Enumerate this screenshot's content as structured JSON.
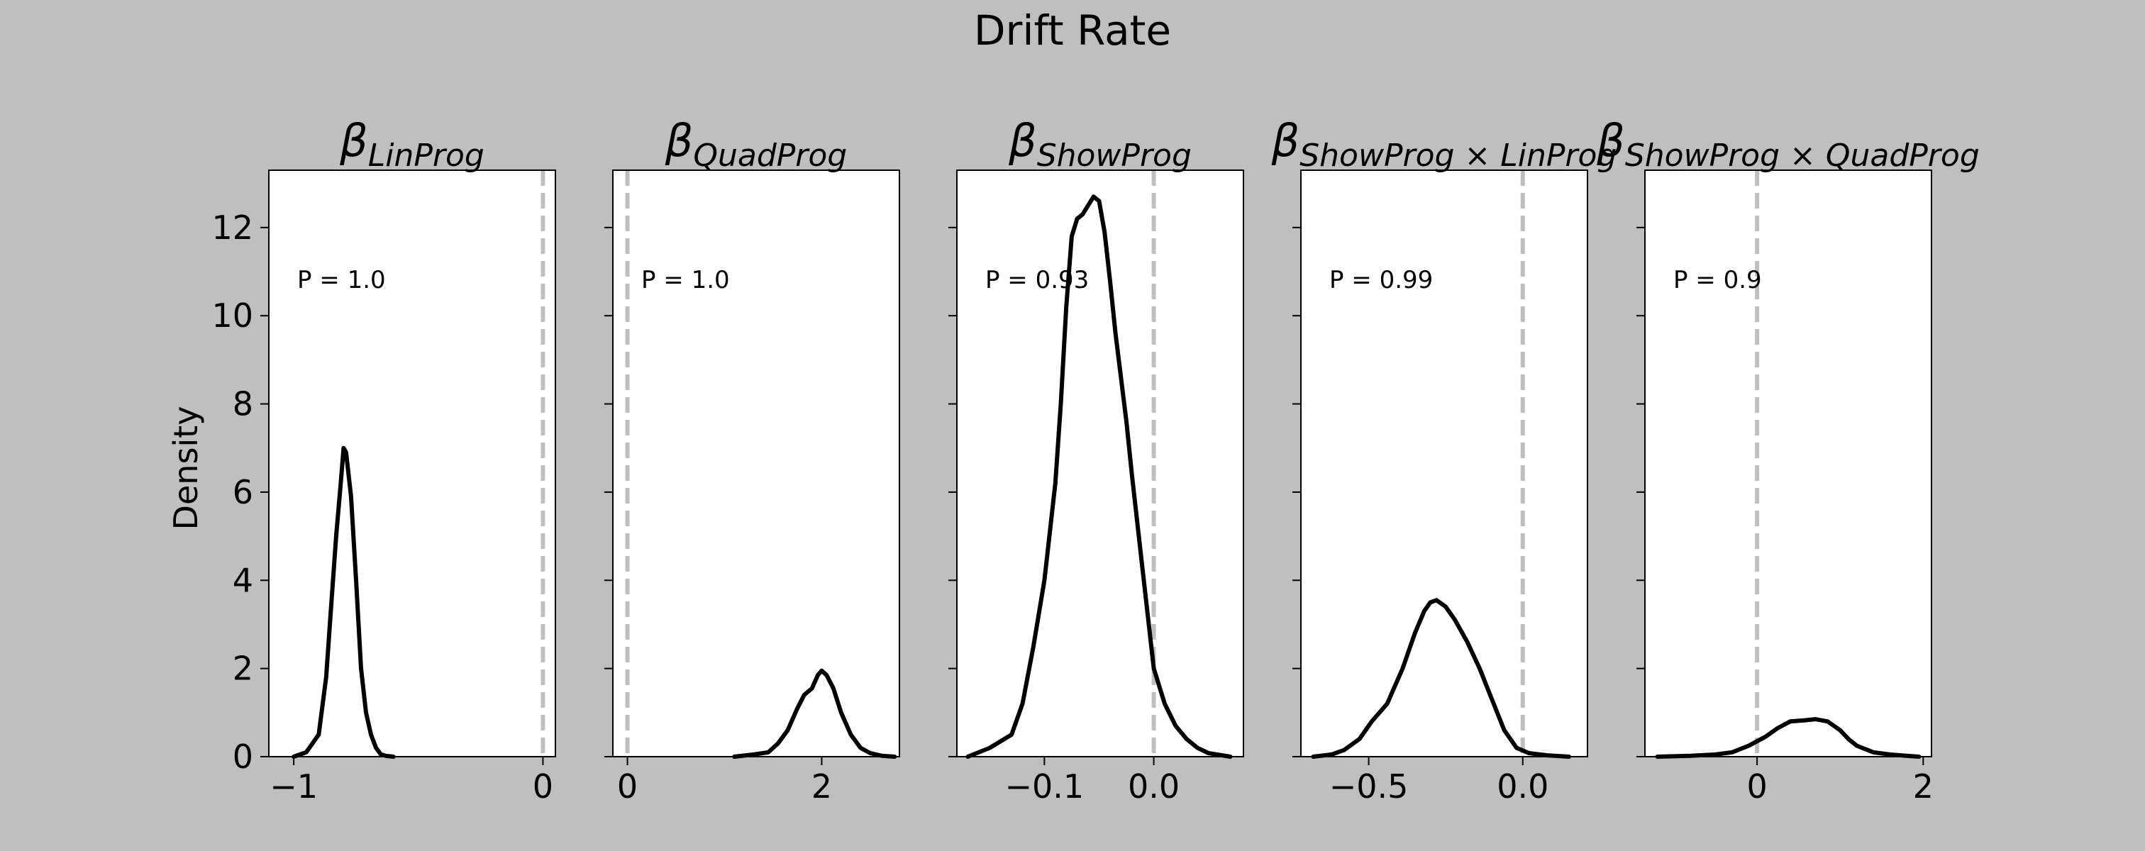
{
  "figure": {
    "title": "Drift Rate",
    "ylabel": "Density",
    "background": "#bfbfbf"
  },
  "colors": {
    "line": "#000000",
    "reference_line": "#bfbfbf",
    "panel": "#ffffff"
  },
  "chart_data": [
    {
      "type": "line",
      "title": {
        "base": "β",
        "sub": "LinProg"
      },
      "annotation": "P = 1.0",
      "xlim": [
        -1.1,
        0.05
      ],
      "ylim": [
        0,
        13.3
      ],
      "xticks": [
        {
          "v": -1,
          "label": "−1"
        },
        {
          "v": 0,
          "label": "0"
        }
      ],
      "yticks": [
        0,
        2,
        4,
        6,
        8,
        10,
        12
      ],
      "reference_x": 0,
      "x": [
        -1.0,
        -0.95,
        -0.9,
        -0.87,
        -0.85,
        -0.83,
        -0.81,
        -0.8,
        -0.79,
        -0.77,
        -0.75,
        -0.73,
        -0.71,
        -0.69,
        -0.67,
        -0.65,
        -0.63,
        -0.6
      ],
      "y": [
        0,
        0.1,
        0.5,
        1.8,
        3.4,
        5.0,
        6.3,
        7.0,
        6.9,
        5.9,
        4.0,
        2.0,
        1.0,
        0.5,
        0.2,
        0.05,
        0.02,
        0
      ]
    },
    {
      "type": "line",
      "title": {
        "base": "β",
        "sub": "QuadProg"
      },
      "annotation": "P = 1.0",
      "xlim": [
        -0.15,
        2.8
      ],
      "ylim": [
        0,
        13.3
      ],
      "xticks": [
        {
          "v": 0,
          "label": "0"
        },
        {
          "v": 2,
          "label": "2"
        }
      ],
      "yticks": [
        0,
        2,
        4,
        6,
        8,
        10,
        12
      ],
      "reference_x": 0,
      "x": [
        1.1,
        1.3,
        1.45,
        1.55,
        1.65,
        1.75,
        1.82,
        1.9,
        1.96,
        2.0,
        2.05,
        2.12,
        2.2,
        2.3,
        2.4,
        2.5,
        2.62,
        2.75
      ],
      "y": [
        0,
        0.05,
        0.1,
        0.3,
        0.6,
        1.1,
        1.4,
        1.55,
        1.85,
        1.95,
        1.85,
        1.55,
        1.0,
        0.5,
        0.2,
        0.08,
        0.02,
        0
      ]
    },
    {
      "type": "line",
      "title": {
        "base": "β",
        "sub": "ShowProg"
      },
      "annotation": "P = 0.93",
      "xlim": [
        -0.18,
        0.082
      ],
      "ylim": [
        0,
        13.3
      ],
      "xticks": [
        {
          "v": -0.1,
          "label": "−0.1"
        },
        {
          "v": 0,
          "label": "0.0"
        }
      ],
      "yticks": [
        0,
        2,
        4,
        6,
        8,
        10,
        12
      ],
      "reference_x": 0,
      "x": [
        -0.17,
        -0.15,
        -0.13,
        -0.12,
        -0.11,
        -0.1,
        -0.09,
        -0.085,
        -0.08,
        -0.075,
        -0.07,
        -0.065,
        -0.06,
        -0.055,
        -0.05,
        -0.045,
        -0.04,
        -0.035,
        -0.03,
        -0.025,
        -0.02,
        -0.01,
        0.0,
        0.01,
        0.02,
        0.03,
        0.04,
        0.05,
        0.07
      ],
      "y": [
        0,
        0.2,
        0.5,
        1.2,
        2.5,
        4.0,
        6.2,
        8.0,
        10.2,
        11.8,
        12.2,
        12.3,
        12.5,
        12.7,
        12.6,
        11.9,
        10.8,
        9.6,
        8.6,
        7.6,
        6.4,
        4.2,
        2.0,
        1.2,
        0.7,
        0.4,
        0.2,
        0.08,
        0
      ]
    },
    {
      "type": "line",
      "title": {
        "base": "β",
        "sub": "ShowProg × LinProg"
      },
      "annotation": "P = 0.99",
      "xlim": [
        -0.72,
        0.21
      ],
      "ylim": [
        0,
        13.3
      ],
      "xticks": [
        {
          "v": -0.5,
          "label": "−0.5"
        },
        {
          "v": 0,
          "label": "0.0"
        }
      ],
      "yticks": [
        0,
        2,
        4,
        6,
        8,
        10,
        12
      ],
      "reference_x": 0,
      "x": [
        -0.68,
        -0.62,
        -0.58,
        -0.53,
        -0.49,
        -0.44,
        -0.39,
        -0.35,
        -0.32,
        -0.3,
        -0.28,
        -0.25,
        -0.22,
        -0.18,
        -0.14,
        -0.1,
        -0.06,
        -0.02,
        0.02,
        0.08,
        0.15
      ],
      "y": [
        0,
        0.05,
        0.15,
        0.4,
        0.8,
        1.2,
        2.0,
        2.8,
        3.3,
        3.5,
        3.55,
        3.4,
        3.1,
        2.6,
        2.0,
        1.3,
        0.6,
        0.2,
        0.08,
        0.03,
        0
      ]
    },
    {
      "type": "line",
      "title": {
        "base": "β",
        "sub": "ShowProg × QuadProg"
      },
      "annotation": "P = 0.9",
      "xlim": [
        -1.35,
        2.1
      ],
      "ylim": [
        0,
        13.3
      ],
      "xticks": [
        {
          "v": 0,
          "label": "0"
        },
        {
          "v": 2,
          "label": "2"
        }
      ],
      "yticks": [
        0,
        2,
        4,
        6,
        8,
        10,
        12
      ],
      "reference_x": 0,
      "x": [
        -1.2,
        -0.8,
        -0.5,
        -0.3,
        -0.1,
        0.0,
        0.1,
        0.25,
        0.4,
        0.55,
        0.7,
        0.85,
        1.0,
        1.1,
        1.2,
        1.4,
        1.6,
        1.8,
        1.95
      ],
      "y": [
        0,
        0.02,
        0.05,
        0.1,
        0.25,
        0.35,
        0.45,
        0.65,
        0.8,
        0.82,
        0.85,
        0.8,
        0.6,
        0.4,
        0.25,
        0.1,
        0.05,
        0.02,
        0
      ]
    }
  ]
}
